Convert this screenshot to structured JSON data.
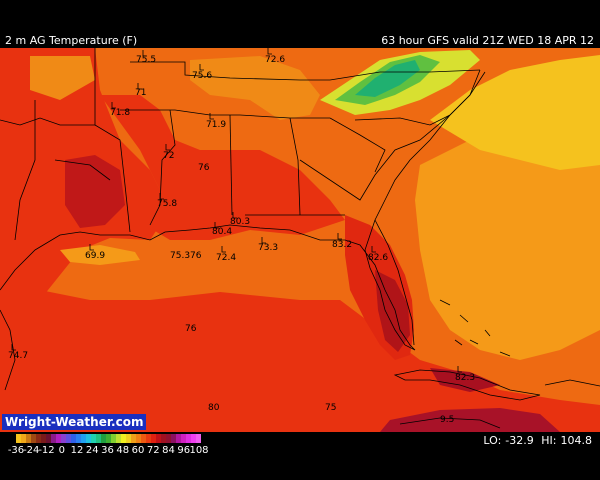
{
  "header": {
    "field": "2 m AG Temperature (F)",
    "forecast": "63 hour GFS valid 21Z WED 18 APR 12"
  },
  "branding": "Wright-Weather.com",
  "stats": {
    "lo_label": "LO:",
    "lo": "-32.9",
    "hi_label": "HI:",
    "hi": "104.8"
  },
  "scale": {
    "ticks": [
      "-36",
      "-24",
      "-12",
      "0",
      "12",
      "24",
      "36",
      "48",
      "60",
      "72",
      "84",
      "96",
      "108"
    ],
    "colors": [
      "#f7c31c",
      "#f0a818",
      "#c97a14",
      "#a04a12",
      "#8a2a14",
      "#7a1a1a",
      "#6a1030",
      "#8a1a8a",
      "#b020c0",
      "#8a40d0",
      "#6050e0",
      "#3060e8",
      "#2a80f0",
      "#20a0f0",
      "#20c0e0",
      "#20d0b0",
      "#20c080",
      "#20a040",
      "#40b030",
      "#80d030",
      "#c0e030",
      "#f0f020",
      "#f0d020",
      "#f0a018",
      "#f08014",
      "#ee5a10",
      "#e83a10",
      "#e02010",
      "#c01018",
      "#a01020",
      "#901030",
      "#8a1060",
      "#b018a0",
      "#d020c0",
      "#e030e0",
      "#f040f0",
      "#f060f0"
    ]
  },
  "station_values": [
    {
      "id": "s1",
      "text": "75.5"
    },
    {
      "id": "s2",
      "text": "75.6"
    },
    {
      "id": "s3",
      "text": "72.6"
    },
    {
      "id": "s4",
      "text": "71"
    },
    {
      "id": "s5",
      "text": "71.8"
    },
    {
      "id": "s6",
      "text": "71.9"
    },
    {
      "id": "s7",
      "text": "72"
    },
    {
      "id": "s8",
      "text": "76"
    },
    {
      "id": "s9",
      "text": "75.8"
    },
    {
      "id": "s10",
      "text": "80.4"
    },
    {
      "id": "s11",
      "text": "80.3"
    },
    {
      "id": "s12",
      "text": "69.9"
    },
    {
      "id": "s13",
      "text": "75.3"
    },
    {
      "id": "s14",
      "text": "76"
    },
    {
      "id": "s15",
      "text": "72.4"
    },
    {
      "id": "s16",
      "text": "73.3"
    },
    {
      "id": "s17",
      "text": "83.2"
    },
    {
      "id": "s18",
      "text": "82.6"
    },
    {
      "id": "s19",
      "text": "76"
    },
    {
      "id": "s20",
      "text": "74.7"
    },
    {
      "id": "s21",
      "text": "82.3"
    },
    {
      "id": "s22",
      "text": "75"
    },
    {
      "id": "s23",
      "text": "80"
    },
    {
      "id": "s24",
      "text": "9.5"
    }
  ]
}
